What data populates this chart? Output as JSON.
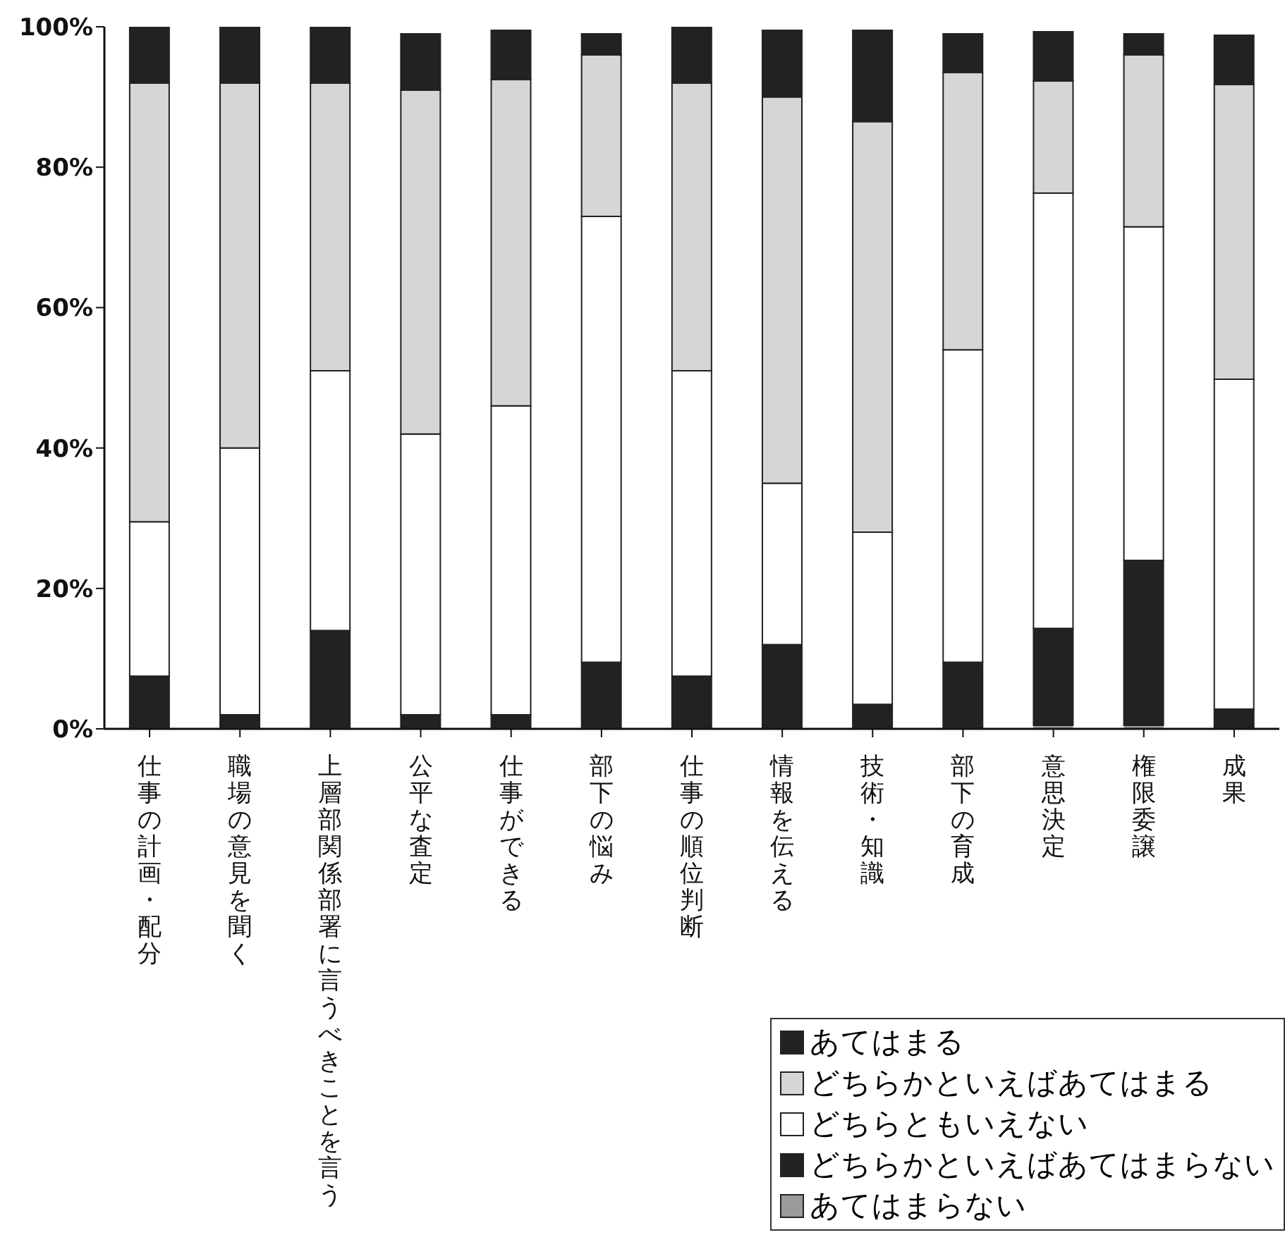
{
  "chart_data": {
    "type": "bar",
    "stacked": true,
    "categories": [
      "仕事の計画・配分",
      "職場の意見を聞く",
      "上層部関係部署に言うべきことを言う",
      "公平な査定",
      "仕事ができる",
      "部下の悩み",
      "仕事の順位判断",
      "情報を伝える",
      "技術・知識",
      "部下の育成",
      "意思決定",
      "権限委譲",
      "成果"
    ],
    "series": [
      {
        "name": "あてはまらない",
        "color": "#9a9a9a",
        "values": [
          0,
          0,
          0,
          0,
          0,
          0,
          0,
          0,
          0,
          0,
          0.5,
          0.5,
          0
        ]
      },
      {
        "name": "どちらかといえばあてはまらない",
        "color": "#222222",
        "values": [
          7.5,
          2,
          14,
          2,
          2,
          9.5,
          7.5,
          12,
          3.5,
          9.5,
          13.8,
          23.5,
          2.8
        ]
      },
      {
        "name": "どちらともいえない",
        "color": "#ffffff",
        "values": [
          22,
          38,
          37,
          40,
          44,
          63.5,
          43.5,
          23,
          24.5,
          44.5,
          62,
          47.5,
          47
        ]
      },
      {
        "name": "どちらかといえばあてはまる",
        "color": "#d6d6d6",
        "values": [
          62.5,
          52,
          41,
          49,
          46.5,
          23,
          41,
          55,
          58.5,
          39.5,
          16,
          24.5,
          42
        ]
      },
      {
        "name": "あてはまる",
        "color": "#222222",
        "values": [
          8,
          8,
          8,
          8,
          7,
          3,
          8,
          9.5,
          13,
          5.5,
          7,
          3,
          7
        ]
      }
    ],
    "ylim": [
      0,
      100
    ],
    "yticks": [
      {
        "value": 0,
        "label": "0%"
      },
      {
        "value": 20,
        "label": "20%"
      },
      {
        "value": 40,
        "label": "40%"
      },
      {
        "value": 60,
        "label": "60%"
      },
      {
        "value": 80,
        "label": "80%"
      },
      {
        "value": 100,
        "label": "100%"
      }
    ],
    "grid": false,
    "legend": "bottom right"
  }
}
